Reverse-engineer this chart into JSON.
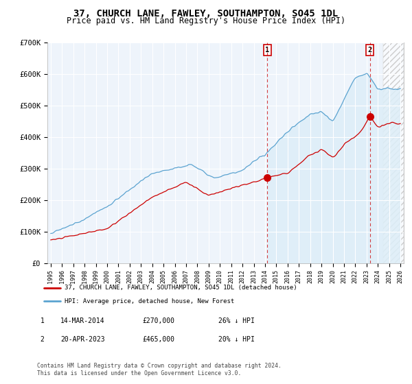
{
  "title": "37, CHURCH LANE, FAWLEY, SOUTHAMPTON, SO45 1DL",
  "subtitle": "Price paid vs. HM Land Registry's House Price Index (HPI)",
  "title_fontsize": 10,
  "subtitle_fontsize": 8.5,
  "ylim": [
    0,
    700000
  ],
  "yticks": [
    0,
    100000,
    200000,
    300000,
    400000,
    500000,
    600000,
    700000
  ],
  "ytick_labels": [
    "£0",
    "£100K",
    "£200K",
    "£300K",
    "£400K",
    "£500K",
    "£600K",
    "£700K"
  ],
  "hpi_color": "#5ba3d0",
  "hpi_fill_color": "#ddeef8",
  "price_color": "#cc0000",
  "vline_color": "#cc0000",
  "xlim_left": 1994.7,
  "xlim_right": 2026.3,
  "purchase1_x": 2014.2,
  "purchase1_y": 270000,
  "purchase2_x": 2023.3,
  "purchase2_y": 465000,
  "legend_label_price": "37, CHURCH LANE, FAWLEY, SOUTHAMPTON, SO45 1DL (detached house)",
  "legend_label_hpi": "HPI: Average price, detached house, New Forest",
  "note1_num": "1",
  "note1_date": "14-MAR-2014",
  "note1_price": "£270,000",
  "note1_hpi": "26% ↓ HPI",
  "note2_num": "2",
  "note2_date": "20-APR-2023",
  "note2_price": "£465,000",
  "note2_hpi": "20% ↓ HPI",
  "footer": "Contains HM Land Registry data © Crown copyright and database right 2024.\nThis data is licensed under the Open Government Licence v3.0.",
  "plot_bg_color": "#eef4fb",
  "fig_bg_color": "#ffffff",
  "hatch_color": "#cccccc"
}
